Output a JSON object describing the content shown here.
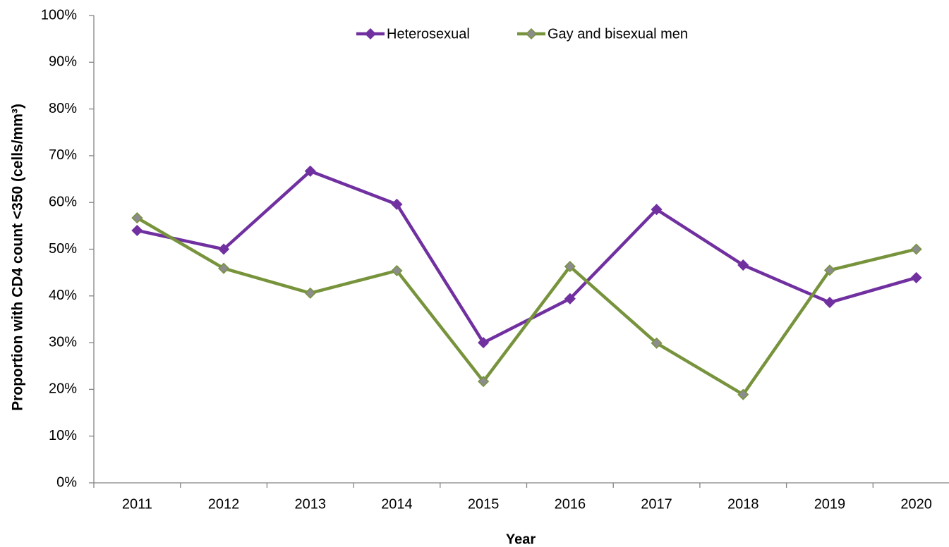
{
  "chart_data": {
    "type": "line",
    "x_label": "Year",
    "y_label": "Proportion with CD4 count <350 (cells/mm³)",
    "categories": [
      "2011",
      "2012",
      "2013",
      "2014",
      "2015",
      "2016",
      "2017",
      "2018",
      "2019",
      "2020"
    ],
    "series": [
      {
        "name": "Heterosexual",
        "color": "#7030a0",
        "marker_color": "#7030a0",
        "values": [
          54.0,
          50.0,
          66.7,
          59.6,
          30.0,
          39.4,
          58.5,
          46.6,
          38.6,
          43.9
        ]
      },
      {
        "name": "Gay and bisexual men",
        "color": "#77933c",
        "marker_color": "#8c8c8c",
        "values": [
          56.7,
          45.9,
          40.6,
          45.4,
          21.7,
          46.3,
          29.9,
          18.9,
          45.5,
          50.0
        ]
      }
    ],
    "ylim": [
      0,
      100
    ],
    "yticks": [
      {
        "value": 0,
        "label": "0%"
      },
      {
        "value": 10,
        "label": "10%"
      },
      {
        "value": 20,
        "label": "20%"
      },
      {
        "value": 30,
        "label": "30%"
      },
      {
        "value": 40,
        "label": "40%"
      },
      {
        "value": 50,
        "label": "50%"
      },
      {
        "value": 60,
        "label": "60%"
      },
      {
        "value": 70,
        "label": "70%"
      },
      {
        "value": 80,
        "label": "80%"
      },
      {
        "value": 90,
        "label": "90%"
      },
      {
        "value": 100,
        "label": "100%"
      }
    ],
    "grid": false,
    "legend": "top"
  }
}
